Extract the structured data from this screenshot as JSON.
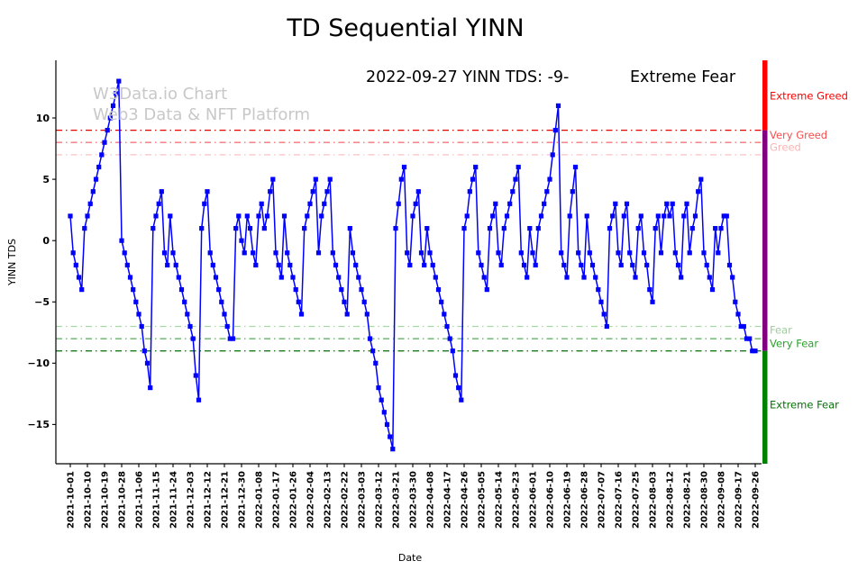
{
  "title": "TD Sequential YINN",
  "header": {
    "date_text": "2022-09-27 YINN TDS: -9-",
    "zone_text": "Extreme Fear",
    "zone_color": "#008000"
  },
  "watermark": {
    "line1": "W3Data.io Chart",
    "line2": "Web3 Data & NFT Platform"
  },
  "chart_data": {
    "type": "line",
    "title": "TD Sequential YINN",
    "xlabel": "Date",
    "ylabel": "YINN TDS",
    "ylim": [
      -18.2,
      14.7
    ],
    "yticks": [
      10,
      5,
      0,
      -5,
      -10,
      -15
    ],
    "ytick_labels": [
      "10",
      "5",
      "0",
      "−5",
      "−10",
      "−15"
    ],
    "points_per_tick": 6,
    "x_tick_labels": [
      "2021-10-01",
      "2021-10-10",
      "2021-10-19",
      "2021-10-28",
      "2021-11-06",
      "2021-11-15",
      "2021-11-24",
      "2021-12-03",
      "2021-12-12",
      "2021-12-21",
      "2021-12-30",
      "2022-01-08",
      "2022-01-17",
      "2022-01-26",
      "2022-02-04",
      "2022-02-13",
      "2022-02-22",
      "2022-03-03",
      "2022-03-12",
      "2022-03-21",
      "2022-03-30",
      "2022-04-08",
      "2022-04-17",
      "2022-04-26",
      "2022-05-05",
      "2022-05-14",
      "2022-05-23",
      "2022-06-01",
      "2022-06-10",
      "2022-06-19",
      "2022-06-28",
      "2022-07-07",
      "2022-07-16",
      "2022-07-25",
      "2022-08-03",
      "2022-08-12",
      "2022-08-21",
      "2022-08-30",
      "2022-09-08",
      "2022-09-17",
      "2022-09-26"
    ],
    "series": [
      {
        "name": "YINN TDS",
        "color": "#0000ff",
        "marker": "square",
        "values": [
          2,
          -1,
          -2,
          -3,
          -4,
          1,
          2,
          3,
          4,
          5,
          6,
          7,
          8,
          9,
          10,
          11,
          12,
          13,
          0,
          -1,
          -2,
          -3,
          -4,
          -5,
          -6,
          -7,
          -9,
          -10,
          -12,
          1,
          2,
          3,
          4,
          -1,
          -2,
          2,
          -1,
          -2,
          -3,
          -4,
          -5,
          -6,
          -7,
          -8,
          -11,
          -13,
          1,
          3,
          4,
          -1,
          -2,
          -3,
          -4,
          -5,
          -6,
          -7,
          -8,
          -8,
          1,
          2,
          0,
          -1,
          2,
          1,
          -1,
          -2,
          2,
          3,
          1,
          2,
          4,
          5,
          -1,
          -2,
          -3,
          2,
          -1,
          -2,
          -3,
          -4,
          -5,
          -6,
          1,
          2,
          3,
          4,
          5,
          -1,
          2,
          3,
          4,
          5,
          -1,
          -2,
          -3,
          -4,
          -5,
          -6,
          1,
          -1,
          -2,
          -3,
          -4,
          -5,
          -6,
          -8,
          -9,
          -10,
          -12,
          -13,
          -14,
          -15,
          -16,
          -17,
          1,
          3,
          5,
          6,
          -1,
          -2,
          2,
          3,
          4,
          -1,
          -2,
          1,
          -1,
          -2,
          -3,
          -4,
          -5,
          -6,
          -7,
          -8,
          -9,
          -11,
          -12,
          -13,
          1,
          2,
          4,
          5,
          6,
          -1,
          -2,
          -3,
          -4,
          1,
          2,
          3,
          -1,
          -2,
          1,
          2,
          3,
          4,
          5,
          6,
          -1,
          -2,
          -3,
          1,
          -1,
          -2,
          1,
          2,
          3,
          4,
          5,
          7,
          9,
          11,
          -1,
          -2,
          -3,
          2,
          4,
          6,
          -1,
          -2,
          -3,
          2,
          -1,
          -2,
          -3,
          -4,
          -5,
          -6,
          -7,
          1,
          2,
          3,
          -1,
          -2,
          2,
          3,
          -1,
          -2,
          -3,
          1,
          2,
          -1,
          -2,
          -4,
          -5,
          1,
          2,
          -1,
          2,
          3,
          2,
          3,
          -1,
          -2,
          -3,
          2,
          3,
          -1,
          1,
          2,
          4,
          5,
          -1,
          -2,
          -3,
          -4,
          1,
          -1,
          1,
          2,
          2,
          -2,
          -3,
          -5,
          -6,
          -7,
          -7,
          -8,
          -8,
          -9,
          -9
        ]
      }
    ],
    "threshold_lines": [
      {
        "value": 9,
        "color": "#e60000"
      },
      {
        "value": 8,
        "color": "#f4777a"
      },
      {
        "value": 7,
        "color": "#fbc2c2"
      },
      {
        "value": -7,
        "color": "#a6d8a6"
      },
      {
        "value": -8,
        "color": "#55aa55"
      },
      {
        "value": -9,
        "color": "#1b7a1b"
      }
    ],
    "zone_labels": [
      {
        "text": "Extreme Greed",
        "value": 11.8,
        "color": "#ff0000"
      },
      {
        "text": "Very Greed",
        "value": 8.6,
        "color": "#f4504f"
      },
      {
        "text": "Greed",
        "value": 7.6,
        "color": "#fbb4b4"
      },
      {
        "text": "Fear",
        "value": -7.3,
        "color": "#9fcd9f"
      },
      {
        "text": "Very Fear",
        "value": -8.4,
        "color": "#2e9e2e"
      },
      {
        "text": "Extreme Fear",
        "value": -13.4,
        "color": "#067106"
      }
    ],
    "colorbar": {
      "segments": [
        {
          "from": 9,
          "to": 14.7,
          "color": "#ff0000"
        },
        {
          "from": -9,
          "to": 9,
          "color": "#800080"
        },
        {
          "from": -18.2,
          "to": -9,
          "color": "#008000"
        }
      ]
    },
    "legend": "none",
    "grid": "off"
  }
}
